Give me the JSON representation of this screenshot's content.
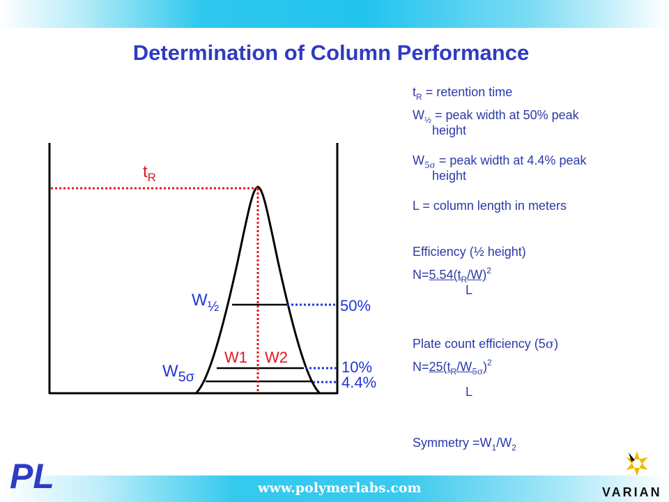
{
  "title": "Determination of Column Performance",
  "definitions": {
    "tr": {
      "t": "t",
      "sub": "R",
      "text": " = retention time"
    },
    "whalf": {
      "w": "W",
      "sub": "½",
      "text": " = peak width at 50% peak",
      "cont": "height"
    },
    "w5s": {
      "w": "W",
      "sub": "5σ",
      "text": " = peak width at 4.4% peak",
      "cont": "height"
    },
    "L": "L = column length in meters"
  },
  "efficiency": {
    "heading": "Efficiency (½ height)",
    "n_prefix": "N=",
    "num_a": "5.54(t",
    "num_sub": "R",
    "num_b": "/W)",
    "exp": "2",
    "denominator": "L"
  },
  "plate_count": {
    "heading_a": "Plate count efficiency (5",
    "sigma": "σ",
    "heading_b": ")",
    "n_prefix": "N=",
    "num_a": "25(t",
    "num_sub": "R",
    "num_b": "/W",
    "num_sub2": "5σ",
    "num_c": ")",
    "exp": "2",
    "denominator": "L"
  },
  "symmetry": {
    "text": "Symmetry =W",
    "sub1": "1",
    "slash": "/W",
    "sub2": "2"
  },
  "diagram": {
    "tr_label": "t",
    "tr_sub": "R",
    "whalf_label": "W",
    "whalf_sub": "½",
    "w5s_label": "W",
    "w5s_sub": "5σ",
    "w1_label": "W1",
    "w2_label": "W2",
    "pct_50": "50%",
    "pct_10": "10%",
    "pct_4_4": "4.4%",
    "colors": {
      "red": "#e8141c",
      "blue": "#1f35d6",
      "black": "#000000"
    }
  },
  "footer": {
    "url": "www.polymerlabs.com",
    "logo_left": "PL",
    "logo_right": "VARIAN"
  }
}
